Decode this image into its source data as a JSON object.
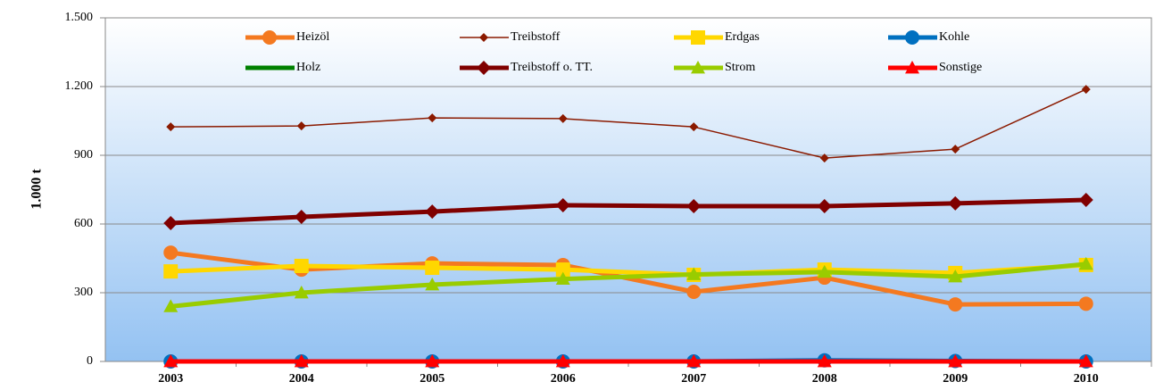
{
  "chart_data": {
    "type": "line",
    "y_label": "1.000 t",
    "categories": [
      "2003",
      "2004",
      "2005",
      "2006",
      "2007",
      "2008",
      "2009",
      "2010"
    ],
    "ylim": [
      0,
      1500
    ],
    "yticks": [
      0,
      300,
      600,
      900,
      {
        "value": 1200,
        "label": "1.200"
      },
      {
        "value": 1500,
        "label": "1.500"
      }
    ],
    "grid": true,
    "series": [
      {
        "name": "Heizöl",
        "color": "#f47920",
        "marker": "circle",
        "width": 5,
        "values": [
          475,
          401,
          428,
          421,
          304,
          366,
          249,
          252
        ]
      },
      {
        "name": "Treibstoff",
        "color": "#8b1a00",
        "marker": "diamond",
        "width": 1.5,
        "values": [
          1024,
          1028,
          1063,
          1060,
          1024,
          888,
          927,
          1188
        ]
      },
      {
        "name": "Erdgas",
        "color": "#ffd700",
        "marker": "square",
        "width": 5,
        "values": [
          393,
          417,
          409,
          401,
          378,
          401,
          386,
          421
        ]
      },
      {
        "name": "Kohle",
        "color": "#0070c0",
        "marker": "circle",
        "width": 5,
        "values": [
          0,
          0,
          0,
          0,
          0,
          5,
          2,
          0
        ]
      },
      {
        "name": "Holz",
        "color": "#008000",
        "marker": "none",
        "width": 5,
        "values": [
          0,
          0,
          0,
          0,
          0,
          0,
          0,
          0
        ]
      },
      {
        "name": "Treibstoff o. TT.",
        "color": "#800000",
        "marker": "diamond",
        "width": 5,
        "values": [
          604,
          631,
          654,
          682,
          678,
          678,
          690,
          705
        ]
      },
      {
        "name": "Strom",
        "color": "#99cc00",
        "marker": "triangle",
        "width": 5,
        "values": [
          240,
          300,
          335,
          360,
          380,
          390,
          370,
          425
        ]
      },
      {
        "name": "Sonstige",
        "color": "#ff0000",
        "marker": "triangle",
        "width": 5,
        "values": [
          0,
          0,
          0,
          0,
          0,
          0,
          0,
          0
        ]
      }
    ]
  }
}
